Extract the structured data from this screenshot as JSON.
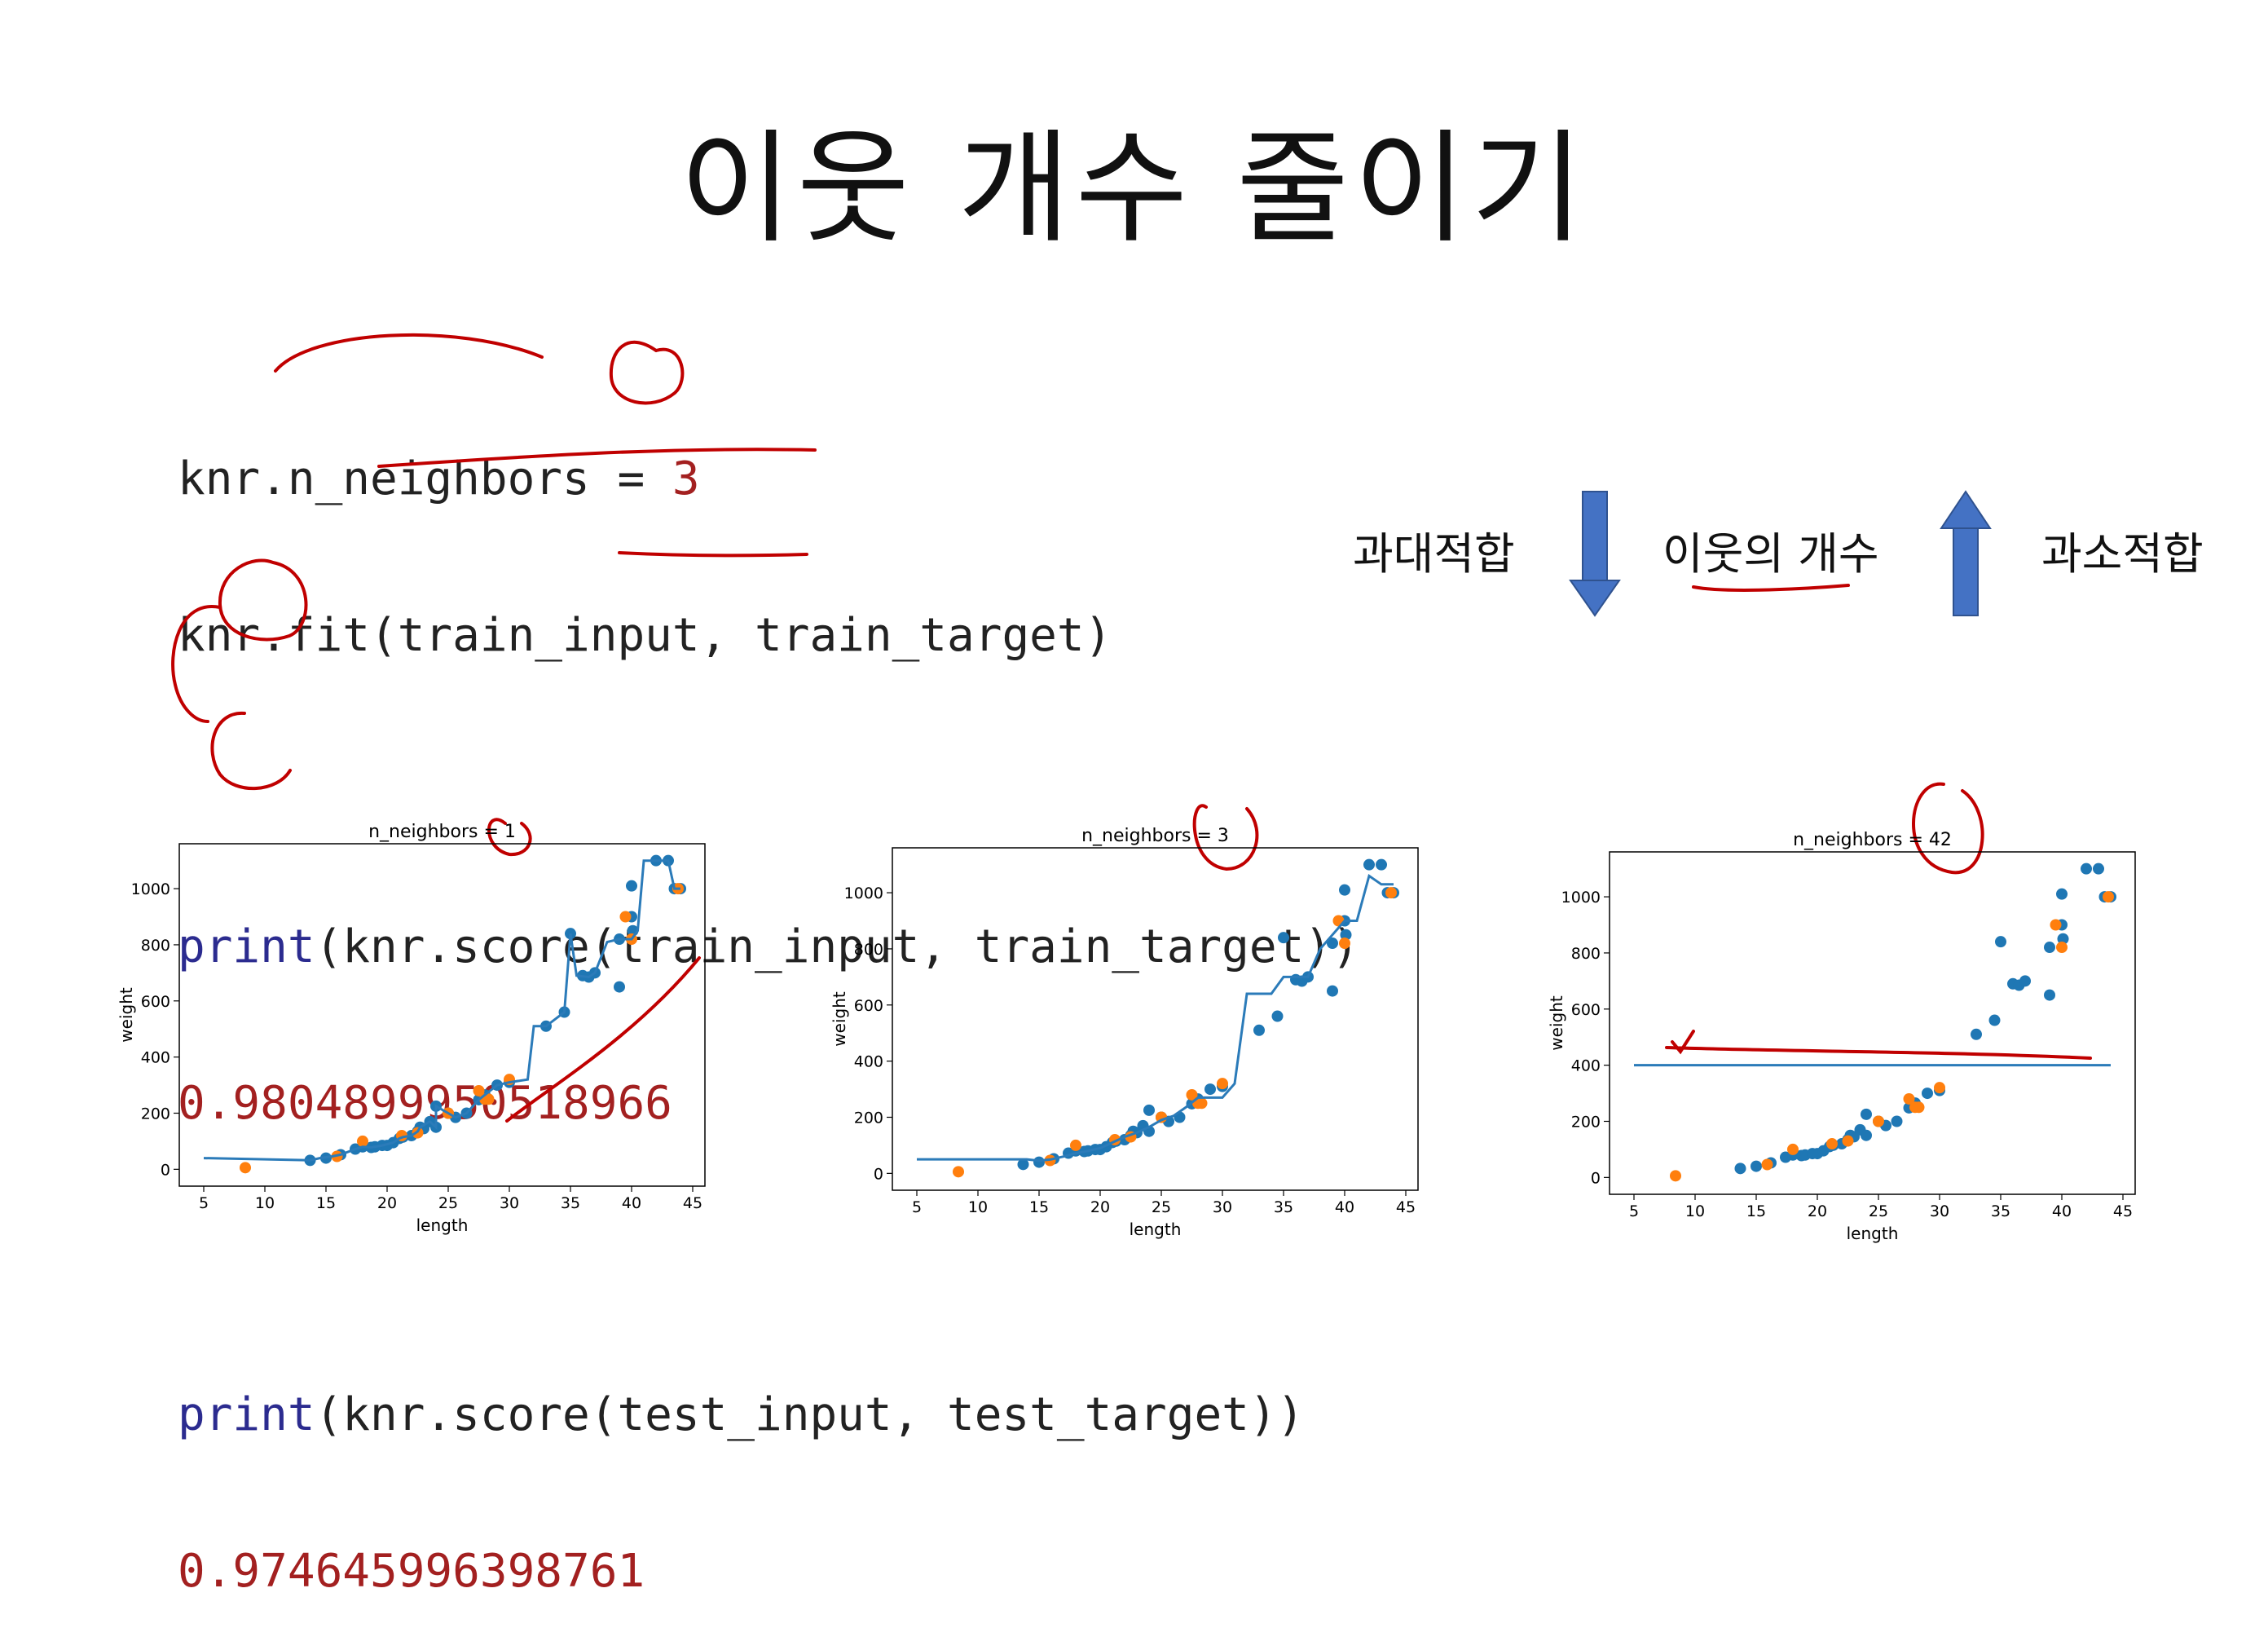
{
  "slide": {
    "title": "이웃 개수 줄이기"
  },
  "code": {
    "line1_prefix": "knr.n_neighbors = ",
    "line1_value": "3",
    "line2": "knr.fit(train_input, train_target)",
    "line3_kw": "print",
    "line3_rest": "(knr.score(train_input, train_target))",
    "line4": "0.9804899950518966",
    "line5_kw": "print",
    "line5_rest": "(knr.score(test_input, test_target))",
    "line6": "0.974645996398761"
  },
  "diagram": {
    "overfit_label": "과대적합",
    "neighbors_label": "이웃의 개수",
    "underfit_label": "과소적합",
    "arrow_color": "#4472c4"
  },
  "colors": {
    "train": "#1f77b4",
    "test": "#ff7f0e",
    "line": "#2b7bb9",
    "annotation": "#c00000"
  },
  "chart_data": [
    {
      "type": "scatter",
      "title": "n_neighbors = 1",
      "xlabel": "length",
      "ylabel": "weight",
      "xlim": [
        3,
        46
      ],
      "ylim": [
        -60,
        1160
      ],
      "xticks": [
        5,
        10,
        15,
        20,
        25,
        30,
        35,
        40,
        45
      ],
      "yticks": [
        0,
        200,
        400,
        600,
        800,
        1000
      ],
      "train_points": [
        [
          13.7,
          32
        ],
        [
          15,
          40
        ],
        [
          16.2,
          52
        ],
        [
          17.4,
          72
        ],
        [
          18,
          80
        ],
        [
          18.7,
          78
        ],
        [
          19,
          80
        ],
        [
          19.6,
          85
        ],
        [
          20,
          85
        ],
        [
          20.5,
          95
        ],
        [
          21,
          110
        ],
        [
          21.3,
          115
        ],
        [
          22,
          120
        ],
        [
          22.5,
          135
        ],
        [
          22.7,
          150
        ],
        [
          23,
          145
        ],
        [
          23.5,
          170
        ],
        [
          24,
          150
        ],
        [
          24,
          225
        ],
        [
          25,
          200
        ],
        [
          25.6,
          185
        ],
        [
          26.5,
          200
        ],
        [
          27.5,
          248
        ],
        [
          28,
          265
        ],
        [
          29,
          300
        ],
        [
          30,
          310
        ],
        [
          33,
          510
        ],
        [
          34.5,
          560
        ],
        [
          35,
          840
        ],
        [
          36,
          690
        ],
        [
          36.5,
          685
        ],
        [
          37,
          700
        ],
        [
          39,
          650
        ],
        [
          39,
          820
        ],
        [
          40,
          1010
        ],
        [
          40,
          900
        ],
        [
          40.1,
          850
        ],
        [
          42,
          1100
        ],
        [
          43,
          1100
        ],
        [
          43.5,
          1000
        ],
        [
          44,
          1000
        ]
      ],
      "test_points": [
        [
          8.4,
          5.9
        ],
        [
          15.9,
          46
        ],
        [
          18,
          100
        ],
        [
          21.2,
          120
        ],
        [
          22.5,
          130
        ],
        [
          25,
          200
        ],
        [
          27.5,
          280
        ],
        [
          28,
          250
        ],
        [
          28.3,
          250
        ],
        [
          30,
          320
        ],
        [
          39.5,
          900
        ],
        [
          40,
          820
        ],
        [
          43.8,
          1000
        ]
      ],
      "line_points": [
        [
          5,
          40
        ],
        [
          13.7,
          32
        ],
        [
          14.5,
          40
        ],
        [
          15.5,
          46
        ],
        [
          16.2,
          52
        ],
        [
          17.4,
          72
        ],
        [
          18,
          80
        ],
        [
          18.7,
          78
        ],
        [
          19.6,
          85
        ],
        [
          20.5,
          95
        ],
        [
          21,
          110
        ],
        [
          21.3,
          115
        ],
        [
          22,
          120
        ],
        [
          22.5,
          135
        ],
        [
          22.7,
          150
        ],
        [
          23.5,
          170
        ],
        [
          24,
          150
        ],
        [
          24,
          225
        ],
        [
          25,
          200
        ],
        [
          25.6,
          185
        ],
        [
          26.5,
          200
        ],
        [
          27.5,
          248
        ],
        [
          28,
          265
        ],
        [
          29,
          300
        ],
        [
          30,
          310
        ],
        [
          31.5,
          320
        ],
        [
          32,
          510
        ],
        [
          33,
          510
        ],
        [
          34.5,
          560
        ],
        [
          35,
          840
        ],
        [
          35.5,
          690
        ],
        [
          36.5,
          685
        ],
        [
          37,
          700
        ],
        [
          38,
          810
        ],
        [
          39,
          820
        ],
        [
          40,
          820
        ],
        [
          40.5,
          850
        ],
        [
          41,
          1100
        ],
        [
          42,
          1100
        ],
        [
          43,
          1100
        ],
        [
          43.5,
          1000
        ],
        [
          44,
          1000
        ]
      ]
    },
    {
      "type": "scatter",
      "title": "n_neighbors = 3",
      "xlabel": "length",
      "ylabel": "weight",
      "xlim": [
        3,
        46
      ],
      "ylim": [
        -60,
        1160
      ],
      "xticks": [
        5,
        10,
        15,
        20,
        25,
        30,
        35,
        40,
        45
      ],
      "yticks": [
        0,
        200,
        400,
        600,
        800,
        1000
      ],
      "train_points": [
        [
          13.7,
          32
        ],
        [
          15,
          40
        ],
        [
          16.2,
          52
        ],
        [
          17.4,
          72
        ],
        [
          18,
          80
        ],
        [
          18.7,
          78
        ],
        [
          19,
          80
        ],
        [
          19.6,
          85
        ],
        [
          20,
          85
        ],
        [
          20.5,
          95
        ],
        [
          21,
          110
        ],
        [
          21.3,
          115
        ],
        [
          22,
          120
        ],
        [
          22.5,
          135
        ],
        [
          22.7,
          150
        ],
        [
          23,
          145
        ],
        [
          23.5,
          170
        ],
        [
          24,
          150
        ],
        [
          24,
          225
        ],
        [
          25,
          200
        ],
        [
          25.6,
          185
        ],
        [
          26.5,
          200
        ],
        [
          27.5,
          248
        ],
        [
          28,
          265
        ],
        [
          29,
          300
        ],
        [
          30,
          310
        ],
        [
          33,
          510
        ],
        [
          34.5,
          560
        ],
        [
          35,
          840
        ],
        [
          36,
          690
        ],
        [
          36.5,
          685
        ],
        [
          37,
          700
        ],
        [
          39,
          650
        ],
        [
          39,
          820
        ],
        [
          40,
          1010
        ],
        [
          40,
          900
        ],
        [
          40.1,
          850
        ],
        [
          42,
          1100
        ],
        [
          43,
          1100
        ],
        [
          43.5,
          1000
        ],
        [
          44,
          1000
        ]
      ],
      "test_points": [
        [
          8.4,
          5.9
        ],
        [
          15.9,
          46
        ],
        [
          18,
          100
        ],
        [
          21.2,
          120
        ],
        [
          22.5,
          130
        ],
        [
          25,
          200
        ],
        [
          27.5,
          280
        ],
        [
          28,
          250
        ],
        [
          28.3,
          250
        ],
        [
          30,
          320
        ],
        [
          39.5,
          900
        ],
        [
          40,
          820
        ],
        [
          43.8,
          1000
        ]
      ],
      "line_points": [
        [
          5,
          50
        ],
        [
          14,
          50
        ],
        [
          15,
          45
        ],
        [
          16,
          50
        ],
        [
          17,
          60
        ],
        [
          18,
          72
        ],
        [
          19,
          80
        ],
        [
          20,
          90
        ],
        [
          21,
          110
        ],
        [
          22,
          130
        ],
        [
          23,
          145
        ],
        [
          24,
          165
        ],
        [
          25,
          190
        ],
        [
          26,
          205
        ],
        [
          27,
          235
        ],
        [
          28,
          270
        ],
        [
          30,
          270
        ],
        [
          31,
          320
        ],
        [
          32,
          640
        ],
        [
          34,
          640
        ],
        [
          35,
          700
        ],
        [
          37,
          700
        ],
        [
          38,
          800
        ],
        [
          39,
          850
        ],
        [
          40,
          900
        ],
        [
          41,
          900
        ],
        [
          42,
          1060
        ],
        [
          43,
          1030
        ],
        [
          44,
          1030
        ]
      ]
    },
    {
      "type": "scatter",
      "title": "n_neighbors = 42",
      "xlabel": "length",
      "ylabel": "weight",
      "xlim": [
        3,
        46
      ],
      "ylim": [
        -60,
        1160
      ],
      "xticks": [
        5,
        10,
        15,
        20,
        25,
        30,
        35,
        40,
        45
      ],
      "yticks": [
        0,
        200,
        400,
        600,
        800,
        1000
      ],
      "train_points": [
        [
          13.7,
          32
        ],
        [
          15,
          40
        ],
        [
          16.2,
          52
        ],
        [
          17.4,
          72
        ],
        [
          18,
          80
        ],
        [
          18.7,
          78
        ],
        [
          19,
          80
        ],
        [
          19.6,
          85
        ],
        [
          20,
          85
        ],
        [
          20.5,
          95
        ],
        [
          21,
          110
        ],
        [
          21.3,
          115
        ],
        [
          22,
          120
        ],
        [
          22.5,
          135
        ],
        [
          22.7,
          150
        ],
        [
          23,
          145
        ],
        [
          23.5,
          170
        ],
        [
          24,
          150
        ],
        [
          24,
          225
        ],
        [
          25,
          200
        ],
        [
          25.6,
          185
        ],
        [
          26.5,
          200
        ],
        [
          27.5,
          248
        ],
        [
          28,
          265
        ],
        [
          29,
          300
        ],
        [
          30,
          310
        ],
        [
          33,
          510
        ],
        [
          34.5,
          560
        ],
        [
          35,
          840
        ],
        [
          36,
          690
        ],
        [
          36.5,
          685
        ],
        [
          37,
          700
        ],
        [
          39,
          650
        ],
        [
          39,
          820
        ],
        [
          40,
          1010
        ],
        [
          40,
          900
        ],
        [
          40.1,
          850
        ],
        [
          42,
          1100
        ],
        [
          43,
          1100
        ],
        [
          43.5,
          1000
        ],
        [
          44,
          1000
        ]
      ],
      "test_points": [
        [
          8.4,
          5.9
        ],
        [
          15.9,
          46
        ],
        [
          18,
          100
        ],
        [
          21.2,
          120
        ],
        [
          22.5,
          130
        ],
        [
          25,
          200
        ],
        [
          27.5,
          280
        ],
        [
          28,
          250
        ],
        [
          28.3,
          250
        ],
        [
          30,
          320
        ],
        [
          39.5,
          900
        ],
        [
          40,
          820
        ],
        [
          43.8,
          1000
        ]
      ],
      "line_points": [
        [
          5,
          400
        ],
        [
          44,
          400
        ]
      ]
    }
  ]
}
